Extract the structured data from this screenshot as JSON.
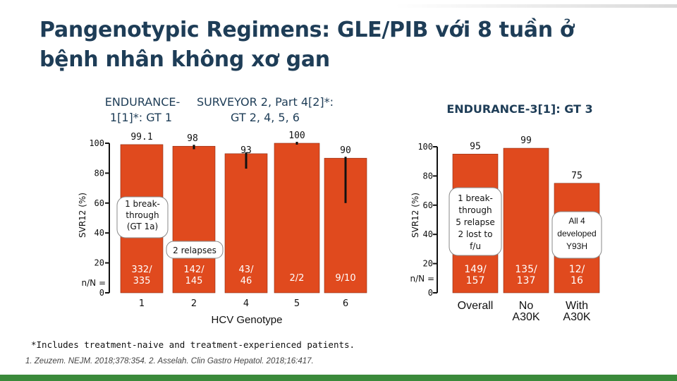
{
  "title": "Pangenotypic Regimens: GLE/PIB với 8 tuần ở bệnh nhân không xơ gan",
  "footnote": "*Includes treatment-naive and treatment-experienced patients.",
  "references": "1. Zeuzem. NEJM. 2018;378:354. 2. Asselah. Clin Gastro Hepatol. 2018;16:417.",
  "colors": {
    "bar": "#e04a1e",
    "bar_edge": "#8a2a10",
    "title": "#1e3d57",
    "accent": "#3a8a3a"
  },
  "chart_data": [
    {
      "type": "bar",
      "group_labels": [
        {
          "line1": "ENDURANCE-",
          "line2": "1[1]*: GT 1"
        },
        {
          "line1": "SURVEYOR 2, Part 4[2]*:",
          "line2": "GT 2, 4, 5, 6"
        }
      ],
      "ylabel": "SVR12 (%)",
      "xlabel": "HCV Genotype",
      "ylim": [
        0,
        100
      ],
      "yticks": [
        0,
        20,
        40,
        60,
        80,
        100
      ],
      "row_label_nN": "n/N =",
      "categories": [
        "1",
        "2",
        "4",
        "5",
        "6"
      ],
      "values": [
        99.1,
        98,
        93,
        100,
        90
      ],
      "value_labels": [
        "99.1",
        "98",
        "93",
        "100",
        "90"
      ],
      "nN": [
        "332/ 335",
        "142/ 145",
        "43/ 46",
        "2/2",
        "9/10"
      ],
      "error_low": [
        null,
        96,
        83,
        100,
        60
      ],
      "annotations": [
        {
          "text": "1 break- through (GT 1a)",
          "category": "1"
        },
        {
          "text": "2 relapses",
          "category": "2"
        }
      ]
    },
    {
      "type": "bar",
      "title": "ENDURANCE-3[1]: GT 3",
      "ylabel": "SVR12 (%)",
      "ylim": [
        0,
        100
      ],
      "yticks": [
        0,
        20,
        40,
        60,
        80,
        100
      ],
      "row_label_nN": "n/N =",
      "categories": [
        "Overall",
        "No A30K",
        "With A30K"
      ],
      "values": [
        95,
        99,
        75
      ],
      "value_labels": [
        "95",
        "99",
        "75"
      ],
      "nN": [
        "149/ 157",
        "135/ 137",
        "12/ 16"
      ],
      "annotations": [
        {
          "text": "1 break- through 5 relapse 2 lost to f/u",
          "category": "Overall"
        },
        {
          "text": "All 4 developed Y93H",
          "category": "With A30K"
        }
      ]
    }
  ]
}
